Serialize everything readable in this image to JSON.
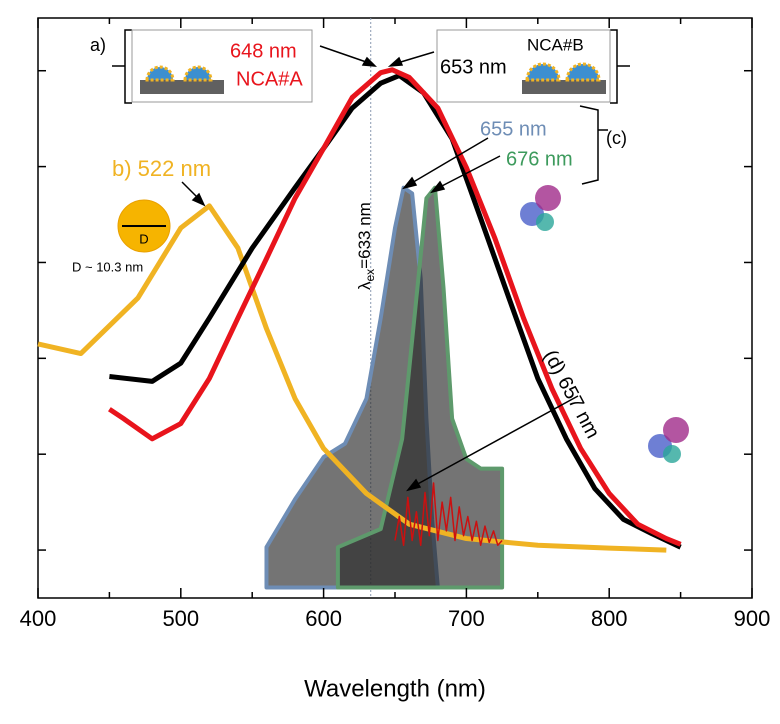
{
  "chart_data": {
    "type": "line",
    "xlabel": "Wavelength (nm)",
    "xlim": [
      400,
      900
    ],
    "xticks": [
      400,
      500,
      600,
      700,
      800,
      900
    ],
    "xminor": [
      450,
      550,
      650,
      750,
      850
    ],
    "ylim": [
      -0.5,
      5.55
    ],
    "yticks": [
      0,
      1,
      2,
      3,
      4,
      5
    ],
    "excitation_line": 633,
    "series": [
      {
        "name": "b) 522 nm",
        "color": "#f0b323",
        "kind": "line",
        "x": [
          400,
          430,
          470,
          500,
          520,
          540,
          560,
          580,
          600,
          630,
          660,
          700,
          750,
          800,
          840
        ],
        "values": [
          2.15,
          2.05,
          2.63,
          3.36,
          3.59,
          3.15,
          2.31,
          1.58,
          1.06,
          0.59,
          0.27,
          0.12,
          0.05,
          0.02,
          0
        ]
      },
      {
        "name": "NCA#B",
        "color": "#000000",
        "kind": "line",
        "x": [
          450,
          480,
          500,
          520,
          550,
          580,
          600,
          620,
          640,
          653,
          670,
          690,
          710,
          730,
          750,
          770,
          790,
          810,
          830,
          850
        ],
        "values": [
          1.81,
          1.76,
          1.95,
          2.42,
          3.15,
          3.78,
          4.19,
          4.61,
          4.87,
          4.95,
          4.77,
          4.29,
          3.46,
          2.62,
          1.79,
          1.16,
          0.64,
          0.32,
          0.17,
          0.03
        ]
      },
      {
        "name": "NCA#A",
        "color": "#e8141c",
        "kind": "line",
        "x": [
          450,
          460,
          480,
          500,
          520,
          540,
          560,
          580,
          600,
          620,
          640,
          648,
          660,
          680,
          700,
          720,
          740,
          760,
          780,
          800,
          820,
          840,
          850
        ],
        "values": [
          1.47,
          1.37,
          1.16,
          1.32,
          1.79,
          2.42,
          3.04,
          3.67,
          4.19,
          4.72,
          4.98,
          5.01,
          4.93,
          4.61,
          3.99,
          3.25,
          2.42,
          1.68,
          1.06,
          0.59,
          0.27,
          0.12,
          0.06
        ]
      },
      {
        "name": "655 nm",
        "color": "#6e8db5",
        "kind": "area",
        "x": [
          560,
          560,
          580,
          600,
          615,
          630,
          640,
          650,
          656,
          662,
          668,
          672,
          676,
          680
        ],
        "values": [
          -0.39,
          0.03,
          0.53,
          0.97,
          1.11,
          1.58,
          2.42,
          3.36,
          3.78,
          3.72,
          2.83,
          1.37,
          0.32,
          -0.39
        ]
      },
      {
        "name": "676 nm",
        "color": "#5e9a6c",
        "kind": "area",
        "x": [
          610,
          610,
          640,
          655,
          665,
          672,
          678,
          684,
          690,
          700,
          710,
          725,
          725
        ],
        "values": [
          -0.39,
          0.03,
          0.22,
          1.16,
          2.63,
          3.67,
          3.78,
          2.73,
          1.37,
          0.95,
          0.85,
          0.85,
          -0.39
        ]
      },
      {
        "name": "(d) 657 nm",
        "color": "#cc1010",
        "kind": "line",
        "x": [
          650,
          653,
          656,
          659,
          662,
          665,
          668,
          671,
          674,
          677,
          680,
          683,
          686,
          689,
          692,
          695,
          698,
          701,
          704,
          707,
          710,
          713,
          716,
          719,
          722,
          725
        ],
        "values": [
          0.1,
          0.35,
          0.05,
          0.55,
          0.1,
          0.4,
          0.05,
          0.6,
          0.15,
          0.7,
          0.1,
          0.5,
          0.2,
          0.55,
          0.1,
          0.45,
          0.15,
          0.35,
          0.1,
          0.3,
          0.05,
          0.25,
          0.08,
          0.2,
          0.05,
          0.1
        ]
      }
    ],
    "annotations": {
      "a": "a)",
      "a_nm": "648 nm",
      "a_name": "NCA#A",
      "b_nm": "653 nm",
      "b_name": "NCA#B",
      "c": "(c)",
      "d_diam": "D",
      "d_size": "D ~ 10.3 nm",
      "lambda": "λ",
      "lambda_sub": "ex",
      "lambda_rest": "=633 nm"
    }
  }
}
